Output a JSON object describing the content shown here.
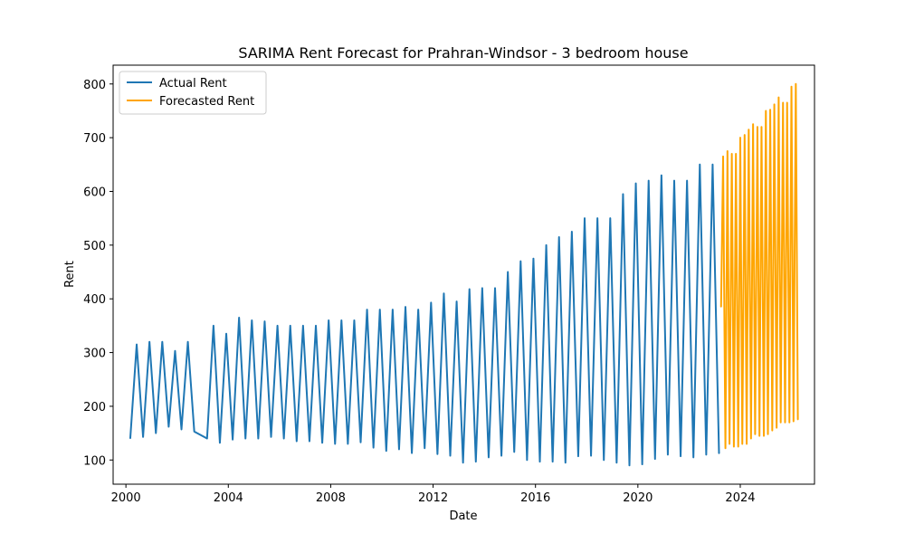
{
  "chart_data": {
    "type": "line",
    "title": "SARIMA Rent Forecast for Prahran-Windsor - 3 bedroom house",
    "xlabel": "Date",
    "ylabel": "Rent",
    "xlim": [
      1999.5,
      2026.9
    ],
    "ylim": [
      55,
      835
    ],
    "x_ticks": [
      2000,
      2004,
      2008,
      2012,
      2016,
      2020,
      2024
    ],
    "y_ticks": [
      100,
      200,
      300,
      400,
      500,
      600,
      700,
      800
    ],
    "grid": false,
    "legend_position": "top-left",
    "series": [
      {
        "name": "Actual Rent",
        "color": "#1f77b4",
        "points": [
          [
            2000.17,
            140
          ],
          [
            2000.42,
            315
          ],
          [
            2000.67,
            143
          ],
          [
            2000.92,
            320
          ],
          [
            2001.17,
            150
          ],
          [
            2001.42,
            320
          ],
          [
            2001.67,
            162
          ],
          [
            2001.92,
            303
          ],
          [
            2002.17,
            157
          ],
          [
            2002.42,
            320
          ],
          [
            2002.67,
            153
          ],
          [
            2003.17,
            140
          ],
          [
            2003.42,
            350
          ],
          [
            2003.67,
            132
          ],
          [
            2003.92,
            335
          ],
          [
            2004.17,
            138
          ],
          [
            2004.42,
            365
          ],
          [
            2004.67,
            140
          ],
          [
            2004.92,
            360
          ],
          [
            2005.17,
            140
          ],
          [
            2005.42,
            358
          ],
          [
            2005.67,
            143
          ],
          [
            2005.92,
            350
          ],
          [
            2006.17,
            140
          ],
          [
            2006.42,
            350
          ],
          [
            2006.67,
            135
          ],
          [
            2006.92,
            350
          ],
          [
            2007.17,
            135
          ],
          [
            2007.42,
            350
          ],
          [
            2007.67,
            132
          ],
          [
            2007.92,
            360
          ],
          [
            2008.17,
            130
          ],
          [
            2008.42,
            360
          ],
          [
            2008.67,
            130
          ],
          [
            2008.92,
            360
          ],
          [
            2009.17,
            133
          ],
          [
            2009.42,
            380
          ],
          [
            2009.67,
            123
          ],
          [
            2009.92,
            380
          ],
          [
            2010.17,
            117
          ],
          [
            2010.42,
            380
          ],
          [
            2010.67,
            120
          ],
          [
            2010.92,
            385
          ],
          [
            2011.17,
            113
          ],
          [
            2011.42,
            380
          ],
          [
            2011.67,
            122
          ],
          [
            2011.92,
            393
          ],
          [
            2012.17,
            111
          ],
          [
            2012.42,
            410
          ],
          [
            2012.67,
            108
          ],
          [
            2012.92,
            395
          ],
          [
            2013.17,
            95
          ],
          [
            2013.42,
            418
          ],
          [
            2013.67,
            97
          ],
          [
            2013.92,
            420
          ],
          [
            2014.17,
            105
          ],
          [
            2014.42,
            420
          ],
          [
            2014.67,
            108
          ],
          [
            2014.92,
            450
          ],
          [
            2015.17,
            115
          ],
          [
            2015.42,
            470
          ],
          [
            2015.67,
            100
          ],
          [
            2015.92,
            475
          ],
          [
            2016.17,
            97
          ],
          [
            2016.42,
            500
          ],
          [
            2016.67,
            97
          ],
          [
            2016.92,
            515
          ],
          [
            2017.17,
            95
          ],
          [
            2017.42,
            525
          ],
          [
            2017.67,
            107
          ],
          [
            2017.92,
            550
          ],
          [
            2018.17,
            108
          ],
          [
            2018.42,
            550
          ],
          [
            2018.67,
            100
          ],
          [
            2018.92,
            550
          ],
          [
            2019.17,
            95
          ],
          [
            2019.42,
            595
          ],
          [
            2019.67,
            90
          ],
          [
            2019.92,
            615
          ],
          [
            2020.17,
            92
          ],
          [
            2020.42,
            620
          ],
          [
            2020.67,
            102
          ],
          [
            2020.92,
            630
          ],
          [
            2021.17,
            110
          ],
          [
            2021.42,
            620
          ],
          [
            2021.67,
            107
          ],
          [
            2021.92,
            620
          ],
          [
            2022.17,
            105
          ],
          [
            2022.42,
            650
          ],
          [
            2022.67,
            110
          ],
          [
            2022.92,
            650
          ],
          [
            2023.17,
            112
          ]
        ]
      },
      {
        "name": "Forecasted Rent",
        "color": "#ffa500",
        "points": [
          [
            2023.25,
            385
          ],
          [
            2023.33,
            665
          ],
          [
            2023.42,
            122
          ],
          [
            2023.5,
            675
          ],
          [
            2023.58,
            130
          ],
          [
            2023.67,
            670
          ],
          [
            2023.75,
            125
          ],
          [
            2023.83,
            670
          ],
          [
            2023.92,
            125
          ],
          [
            2024.0,
            700
          ],
          [
            2024.08,
            130
          ],
          [
            2024.17,
            705
          ],
          [
            2024.25,
            130
          ],
          [
            2024.33,
            715
          ],
          [
            2024.42,
            140
          ],
          [
            2024.5,
            725
          ],
          [
            2024.58,
            148
          ],
          [
            2024.67,
            720
          ],
          [
            2024.75,
            145
          ],
          [
            2024.83,
            720
          ],
          [
            2024.92,
            145
          ],
          [
            2025.0,
            750
          ],
          [
            2025.08,
            148
          ],
          [
            2025.17,
            752
          ],
          [
            2025.25,
            155
          ],
          [
            2025.33,
            762
          ],
          [
            2025.42,
            160
          ],
          [
            2025.5,
            775
          ],
          [
            2025.58,
            170
          ],
          [
            2025.67,
            765
          ],
          [
            2025.75,
            170
          ],
          [
            2025.83,
            765
          ],
          [
            2025.92,
            170
          ],
          [
            2026.0,
            795
          ],
          [
            2026.08,
            172
          ],
          [
            2026.17,
            800
          ],
          [
            2026.25,
            175
          ]
        ]
      }
    ]
  }
}
